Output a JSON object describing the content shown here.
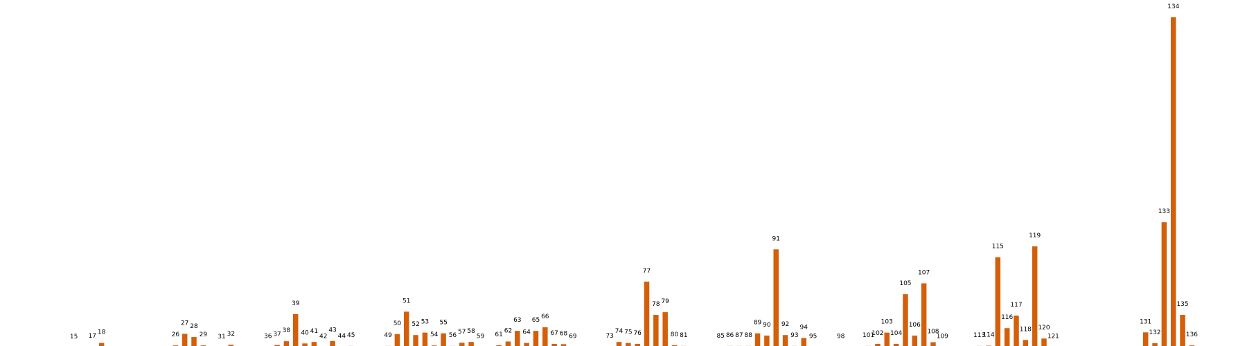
{
  "colors": {
    "bar": "#d45f0a",
    "background": "#ffffff"
  },
  "chart_data": {
    "type": "bar",
    "title": "",
    "xlabel": "",
    "ylabel": "",
    "grid": false,
    "legend": "none",
    "ylim": [
      0,
      135
    ],
    "categories": [
      15,
      17,
      18,
      26,
      27,
      28,
      29,
      31,
      32,
      36,
      37,
      38,
      39,
      40,
      41,
      42,
      43,
      44,
      45,
      49,
      50,
      51,
      52,
      53,
      54,
      55,
      56,
      57,
      58,
      59,
      61,
      62,
      63,
      64,
      65,
      66,
      67,
      68,
      69,
      73,
      74,
      75,
      76,
      77,
      78,
      79,
      80,
      81,
      85,
      86,
      87,
      88,
      89,
      90,
      91,
      92,
      93,
      94,
      95,
      98,
      101,
      102,
      103,
      104,
      105,
      106,
      107,
      108,
      109,
      113,
      114,
      115,
      116,
      117,
      118,
      119,
      120,
      121,
      131,
      132,
      133,
      134,
      135,
      136
    ],
    "values": [
      0,
      0.3,
      1.8,
      0.8,
      5.5,
      4.2,
      0.8,
      0,
      1.1,
      0.2,
      1,
      2.5,
      13.5,
      1.6,
      2.2,
      0.2,
      2.6,
      0.3,
      0.6,
      0.6,
      5.4,
      14.5,
      5,
      6,
      0.8,
      5.7,
      0.6,
      1.9,
      2.2,
      0.2,
      0.9,
      2.4,
      6.7,
      1.8,
      6.7,
      8.2,
      1.4,
      1.3,
      0.2,
      0.3,
      2.2,
      1.8,
      1.4,
      26.7,
      13.2,
      14.3,
      0.9,
      0.6,
      0.3,
      0.6,
      0.6,
      0.6,
      5.7,
      4.8,
      39.8,
      5,
      0.6,
      3.8,
      0.2,
      0.2,
      0.6,
      1.4,
      6,
      1.4,
      21.6,
      4.8,
      26,
      2.1,
      0.2,
      0.6,
      0.7,
      36.6,
      7.8,
      12.9,
      3,
      41,
      3.6,
      0.2,
      6.1,
      1.7,
      50.8,
      134,
      13.2,
      0.8
    ]
  }
}
